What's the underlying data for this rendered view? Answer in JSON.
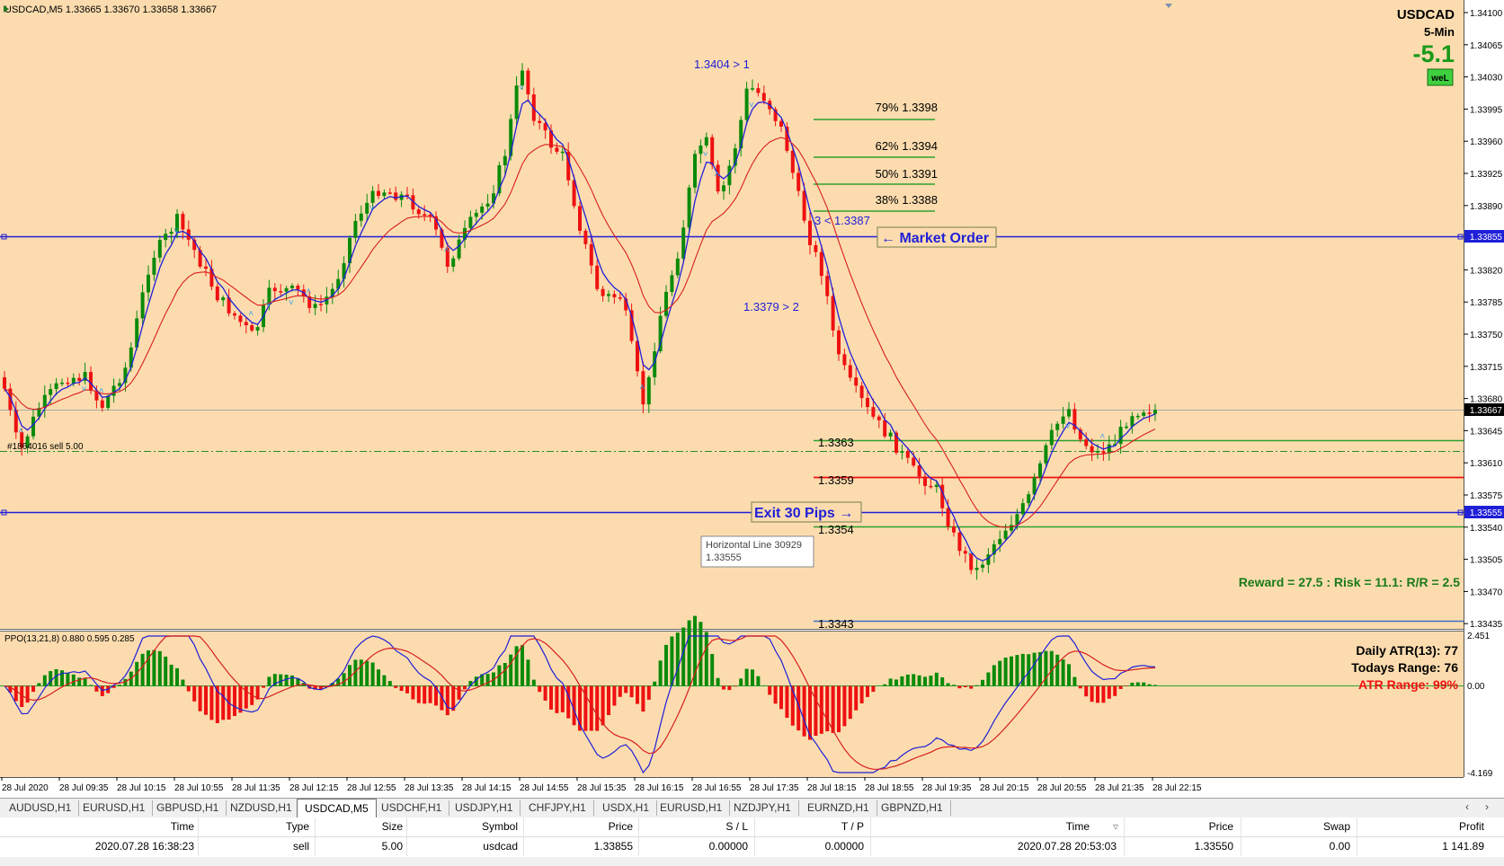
{
  "chart": {
    "header": "USDCAD,M5  1.33665 1.33670 1.33658 1.33667",
    "symbol": "USDCAD",
    "timeframe": "5-Min",
    "pips": "-5.1",
    "badge": "weL",
    "order_label": "#1864016 sell 5.00",
    "tooltip_line1": "Horizontal Line 30929",
    "tooltip_line2": "1.33555",
    "colors": {
      "background": "#fcdcae",
      "bull": "#0a8a0a",
      "bear": "#ee1111",
      "blue_line": "#1f1fd8",
      "red_ma": "#d81e1e",
      "green_line": "#2ea02e"
    }
  },
  "annotations": {
    "fib79": "79% 1.3398",
    "fib62": "62% 1.3394",
    "fib50": "50% 1.3391",
    "fib38": "38% 1.3388",
    "swing_high": "1.3404 > 1",
    "swing_low": "1.3379 > 2",
    "level3": "3 < 1.3387",
    "market_order": "← Market Order",
    "exit": "Exit 30 Pips →",
    "l1363": "1.3363",
    "l1359": "1.3359",
    "l1354": "1.3354",
    "l1343": "1.3343",
    "reward": "Reward = 27.5 : Risk = 11.1: R/R = 2.5"
  },
  "price_axis": {
    "labels": [
      "1.34100",
      "1.34065",
      "1.34030",
      "1.33995",
      "1.33960",
      "1.33925",
      "1.33890",
      "1.33820",
      "1.33785",
      "1.33750",
      "1.33715",
      "1.33680",
      "1.33645",
      "1.33610",
      "1.33575",
      "1.33540",
      "1.33505",
      "1.33470",
      "1.33435"
    ],
    "tag_market": "1.33855",
    "tag_current": "1.33667",
    "tag_exit": "1.33555"
  },
  "time_axis": {
    "labels": [
      "28 Jul 2020",
      "28 Jul 09:35",
      "28 Jul 10:15",
      "28 Jul 10:55",
      "28 Jul 11:35",
      "28 Jul 12:15",
      "28 Jul 12:55",
      "28 Jul 13:35",
      "28 Jul 14:15",
      "28 Jul 14:55",
      "28 Jul 15:35",
      "28 Jul 16:15",
      "28 Jul 16:55",
      "28 Jul 17:35",
      "28 Jul 18:15",
      "28 Jul 18:55",
      "28 Jul 19:35",
      "28 Jul 20:15",
      "28 Jul 20:55",
      "28 Jul 21:35",
      "28 Jul 22:15"
    ]
  },
  "indicator": {
    "header": "PPO(13,21,8) 0.880 0.595 0.285",
    "axis_top": "2.451",
    "axis_zero": "0.00",
    "axis_bottom": "-4.169",
    "atr": "Daily ATR(13): 77",
    "range": "Todays Range: 76",
    "atr_range": "ATR Range: 99%"
  },
  "tabs": [
    "AUDUSD,H1",
    "EURUSD,H1",
    "GBPUSD,H1",
    "NZDUSD,H1",
    "USDCAD,M5",
    "USDCHF,H1",
    "USDJPY,H1",
    "CHFJPY,H1",
    "USDX,H1",
    "EURUSD,H1",
    "NZDJPY,H1",
    "EURNZD,H1",
    "GBPNZD,H1"
  ],
  "active_tab": "USDCAD,M5",
  "trade_table": {
    "headers": {
      "time": "Time",
      "type": "Type",
      "size": "Size",
      "symbol": "Symbol",
      "price": "Price",
      "sl": "S / L",
      "tp": "T / P",
      "close_time": "Time",
      "close_price": "Price",
      "swap": "Swap",
      "profit": "Profit"
    },
    "row": {
      "time": "2020.07.28 16:38:23",
      "type": "sell",
      "size": "5.00",
      "symbol": "usdcad",
      "price": "1.33855",
      "sl": "0.00000",
      "tp": "0.00000",
      "close_time": "2020.07.28 20:53:03",
      "close_price": "1.33550",
      "swap": "0.00",
      "profit": "1 141.89"
    }
  }
}
